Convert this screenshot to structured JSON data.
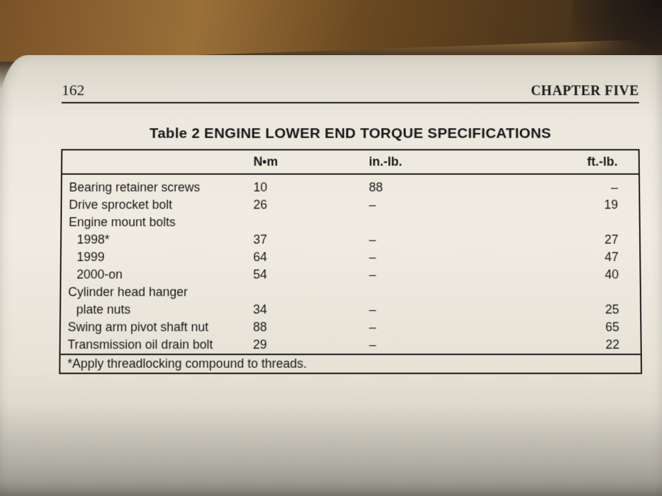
{
  "page": {
    "number": "162",
    "chapter": "CHAPTER FIVE"
  },
  "table": {
    "title": "Table 2 ENGINE LOWER END TORQUE SPECIFICATIONS",
    "columns": {
      "blank": "",
      "nm": "N•m",
      "inlb": "in.-lb.",
      "ftlb": "ft.-lb."
    },
    "rows": [
      {
        "label": "Bearing retainer screws",
        "nm": "10",
        "inlb": "88",
        "ftlb": "–",
        "indent": false,
        "header": false
      },
      {
        "label": "Drive sprocket bolt",
        "nm": "26",
        "inlb": "–",
        "ftlb": "19",
        "indent": false,
        "header": false
      },
      {
        "label": "Engine mount bolts",
        "nm": "",
        "inlb": "",
        "ftlb": "",
        "indent": false,
        "header": true
      },
      {
        "label": "1998*",
        "nm": "37",
        "inlb": "–",
        "ftlb": "27",
        "indent": true,
        "header": false
      },
      {
        "label": "1999",
        "nm": "64",
        "inlb": "–",
        "ftlb": "47",
        "indent": true,
        "header": false
      },
      {
        "label": "2000-on",
        "nm": "54",
        "inlb": "–",
        "ftlb": "40",
        "indent": true,
        "header": false
      },
      {
        "label": "Cylinder head hanger",
        "nm": "",
        "inlb": "",
        "ftlb": "",
        "indent": false,
        "header": true
      },
      {
        "label": "plate nuts",
        "nm": "34",
        "inlb": "–",
        "ftlb": "25",
        "indent": true,
        "header": false
      },
      {
        "label": "Swing arm pivot shaft nut",
        "nm": "88",
        "inlb": "–",
        "ftlb": "65",
        "indent": false,
        "header": false
      },
      {
        "label": "Transmission oil drain bolt",
        "nm": "29",
        "inlb": "–",
        "ftlb": "22",
        "indent": false,
        "header": false
      }
    ],
    "footnote": "*Apply threadlocking compound to threads."
  }
}
